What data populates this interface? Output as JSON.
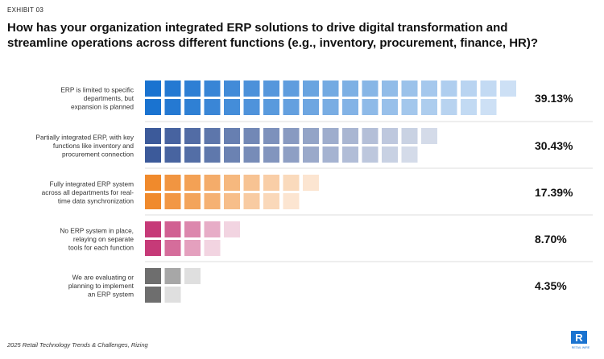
{
  "header": {
    "exhibit": "EXHIBIT 03",
    "title_line1": "How has your organization integrated ERP solutions to drive digital transformation and",
    "title_line2": "streamline operations across different functions (e.g., inventory, procurement, finance, HR)?"
  },
  "footer": {
    "source": "2025 Retail Technology Trends & Challenges, Rizing",
    "logo_text": "R",
    "logo_caption": "RETAIL WIRE"
  },
  "chart_data": {
    "type": "bar",
    "title": "How has your organization integrated ERP solutions to drive digital transformation and streamline operations across different functions (e.g., inventory, procurement, finance, HR)?",
    "categories": [
      "ERP is limited to specific departments, but expansion is planned",
      "Partially integrated ERP, with key functions like inventory and procurement connection",
      "Fully integrated ERP system across all departments for real-time data synchronization",
      "No ERP system in place, relaying on separate tools for each function",
      "We are evaluating or planning to implement an ERP system"
    ],
    "category_lines": [
      [
        "ERP is limited to specific",
        "departments, but",
        "expansion is planned"
      ],
      [
        "Partially integrated ERP, with key",
        "functions like inventory and",
        "procurement connection"
      ],
      [
        "Fully integrated ERP system",
        "across all departments for real-",
        "time data synchronization"
      ],
      [
        "No ERP system in place,",
        "relaying on separate",
        "tools for each function"
      ],
      [
        "We are evaluating or",
        "planning to implement",
        "an ERP system"
      ]
    ],
    "values": [
      39.13,
      30.43,
      17.39,
      8.7,
      4.35
    ],
    "value_labels": [
      "39.13%",
      "30.43%",
      "17.39%",
      "8.70%",
      "4.35%"
    ],
    "units": "%",
    "colors": [
      "#1a73d0",
      "#3c5a9a",
      "#f08a2c",
      "#c63a78",
      "#6e6e6e"
    ],
    "xlim": [
      0,
      40
    ],
    "grid": false,
    "legend": "none"
  }
}
